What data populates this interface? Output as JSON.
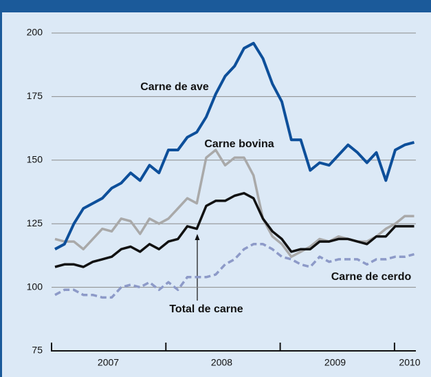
{
  "chart_data": {
    "type": "line",
    "years": [
      "2007",
      "2008",
      "2009",
      "2010"
    ],
    "ylim": [
      75,
      200
    ],
    "yticks": [
      75,
      100,
      125,
      150,
      175,
      200
    ],
    "grid": true,
    "series": [
      {
        "name": "Carne de ave",
        "color": "#0d4f9a",
        "values": [
          115,
          117,
          125,
          131,
          133,
          135,
          139,
          141,
          145,
          142,
          148,
          145,
          154,
          154,
          159,
          161,
          167,
          176,
          183,
          187,
          194,
          196,
          190,
          180,
          173,
          158,
          158,
          146,
          149,
          148,
          152,
          156,
          153,
          149,
          153,
          142,
          154,
          156,
          157
        ]
      },
      {
        "name": "Carne bovina",
        "color": "#a9a9a9",
        "values": [
          119,
          118,
          118,
          115,
          119,
          123,
          122,
          127,
          126,
          121,
          127,
          125,
          127,
          131,
          135,
          133,
          151,
          154,
          148,
          151,
          151,
          144,
          127,
          120,
          117,
          112,
          114,
          116,
          119,
          118,
          120,
          119,
          118,
          118,
          120,
          123,
          125,
          128,
          128
        ]
      },
      {
        "name": "Total de carne",
        "color": "#111111",
        "values": [
          108,
          109,
          109,
          108,
          110,
          111,
          112,
          115,
          116,
          114,
          117,
          115,
          118,
          119,
          124,
          123,
          132,
          134,
          134,
          136,
          137,
          135,
          127,
          122,
          119,
          114,
          115,
          115,
          118,
          118,
          119,
          119,
          118,
          117,
          120,
          120,
          124,
          124,
          124
        ]
      },
      {
        "name": "Carne de cerdo",
        "color": "#8d9ac8",
        "dashed": true,
        "values": [
          97,
          99,
          99,
          97,
          97,
          96,
          96,
          100,
          101,
          100,
          102,
          99,
          102,
          99,
          104,
          104,
          104,
          105,
          109,
          111,
          115,
          117,
          117,
          115,
          112,
          111,
          109,
          108,
          112,
          110,
          111,
          111,
          111,
          109,
          111,
          111,
          112,
          112,
          113
        ]
      }
    ]
  }
}
